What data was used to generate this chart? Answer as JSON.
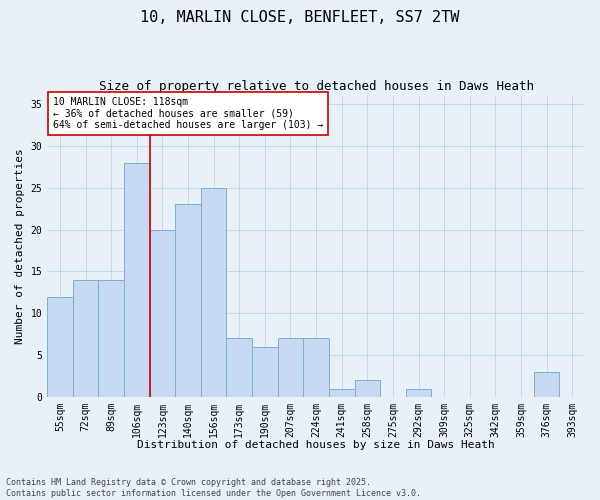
{
  "title1": "10, MARLIN CLOSE, BENFLEET, SS7 2TW",
  "title2": "Size of property relative to detached houses in Daws Heath",
  "xlabel": "Distribution of detached houses by size in Daws Heath",
  "ylabel": "Number of detached properties",
  "categories": [
    "55sqm",
    "72sqm",
    "89sqm",
    "106sqm",
    "123sqm",
    "140sqm",
    "156sqm",
    "173sqm",
    "190sqm",
    "207sqm",
    "224sqm",
    "241sqm",
    "258sqm",
    "275sqm",
    "292sqm",
    "309sqm",
    "325sqm",
    "342sqm",
    "359sqm",
    "376sqm",
    "393sqm"
  ],
  "values": [
    12,
    14,
    14,
    28,
    20,
    23,
    25,
    7,
    6,
    7,
    7,
    1,
    2,
    0,
    1,
    0,
    0,
    0,
    0,
    3,
    0
  ],
  "bar_color": "#c6d9f1",
  "bar_edge_color": "#7bafd4",
  "grid_color": "#c8d8e8",
  "background_color": "#e8f0f8",
  "marker_line_index": 3.5,
  "marker_label": "10 MARLIN CLOSE: 118sqm",
  "marker_pct_left": "← 36% of detached houses are smaller (59)",
  "marker_pct_right": "64% of semi-detached houses are larger (103) →",
  "annotation_box_color": "#ffffff",
  "annotation_border_color": "#cc0000",
  "footer1": "Contains HM Land Registry data © Crown copyright and database right 2025.",
  "footer2": "Contains public sector information licensed under the Open Government Licence v3.0.",
  "ylim": [
    0,
    36
  ],
  "yticks": [
    0,
    5,
    10,
    15,
    20,
    25,
    30,
    35
  ],
  "title_fontsize": 11,
  "subtitle_fontsize": 9,
  "axis_label_fontsize": 8,
  "tick_fontsize": 7,
  "annotation_fontsize": 7,
  "footer_fontsize": 6
}
